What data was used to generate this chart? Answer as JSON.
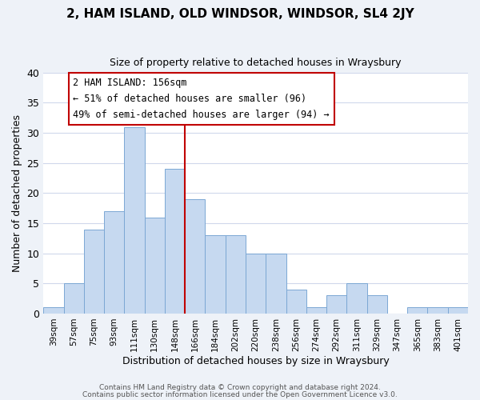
{
  "title": "2, HAM ISLAND, OLD WINDSOR, WINDSOR, SL4 2JY",
  "subtitle": "Size of property relative to detached houses in Wraysbury",
  "xlabel": "Distribution of detached houses by size in Wraysbury",
  "ylabel": "Number of detached properties",
  "bin_labels": [
    "39sqm",
    "57sqm",
    "75sqm",
    "93sqm",
    "111sqm",
    "130sqm",
    "148sqm",
    "166sqm",
    "184sqm",
    "202sqm",
    "220sqm",
    "238sqm",
    "256sqm",
    "274sqm",
    "292sqm",
    "311sqm",
    "329sqm",
    "347sqm",
    "365sqm",
    "383sqm",
    "401sqm"
  ],
  "bar_heights": [
    1,
    5,
    14,
    17,
    31,
    16,
    24,
    19,
    13,
    13,
    10,
    10,
    4,
    1,
    3,
    5,
    3,
    0,
    1,
    1,
    1
  ],
  "bar_color": "#c6d9f0",
  "bar_edge_color": "#7ba7d4",
  "vline_x": 6.5,
  "vline_color": "#c00000",
  "annotation_title": "2 HAM ISLAND: 156sqm",
  "annotation_line1": "← 51% of detached houses are smaller (96)",
  "annotation_line2": "49% of semi-detached houses are larger (94) →",
  "annotation_box_edge": "#c00000",
  "ylim": [
    0,
    40
  ],
  "yticks": [
    0,
    5,
    10,
    15,
    20,
    25,
    30,
    35,
    40
  ],
  "footer1": "Contains HM Land Registry data © Crown copyright and database right 2024.",
  "footer2": "Contains public sector information licensed under the Open Government Licence v3.0.",
  "bg_color": "#eef2f8",
  "plot_bg_color": "#ffffff",
  "grid_color": "#d0d8ec"
}
